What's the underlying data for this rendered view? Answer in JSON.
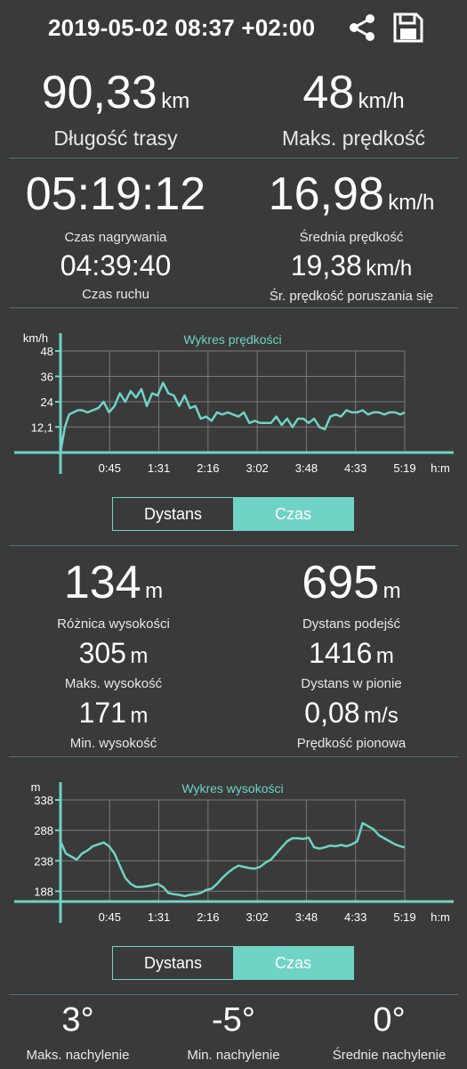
{
  "header": {
    "title": "2019-05-02 08:37 +02:00"
  },
  "summary": {
    "distance": {
      "value": "90,33",
      "unit": "km",
      "label": "Długość trasy"
    },
    "max_speed": {
      "value": "48",
      "unit": "km/h",
      "label": "Maks. prędkość"
    },
    "rec_time": {
      "value": "05:19:12",
      "label": "Czas nagrywania"
    },
    "avg_speed": {
      "value": "16,98",
      "unit": "km/h",
      "label": "Średnia prędkość"
    },
    "move_time": {
      "value": "04:39:40",
      "label": "Czas ruchu"
    },
    "avg_move_speed": {
      "value": "19,38",
      "unit": "km/h",
      "label": "Śr. prędkość poruszania się"
    }
  },
  "elevation": {
    "diff": {
      "value": "134",
      "unit": "m",
      "label": "Różnica wysokości"
    },
    "ascent": {
      "value": "695",
      "unit": "m",
      "label": "Dystans podejść"
    },
    "max": {
      "value": "305",
      "unit": "m",
      "label": "Maks. wysokość"
    },
    "vertical": {
      "value": "1416",
      "unit": "m",
      "label": "Dystans w pionie"
    },
    "min": {
      "value": "171",
      "unit": "m",
      "label": "Min. wysokość"
    },
    "vspeed": {
      "value": "0,08",
      "unit": "m/s",
      "label": "Prędkość pionowa"
    }
  },
  "slope": {
    "max": {
      "value": "3°",
      "label": "Maks. nachylenie"
    },
    "min": {
      "value": "-5°",
      "label": "Min. nachylenie"
    },
    "avg": {
      "value": "0°",
      "label": "Średnie nachylenie"
    }
  },
  "toggle": {
    "distance": "Dystans",
    "time": "Czas",
    "selected": "Czas"
  },
  "colors": {
    "accent": "#6fd3c6",
    "background": "#3a3a3a",
    "grid": "#7a7a7a"
  },
  "icons": {
    "share": "share-icon",
    "save": "save-icon"
  },
  "chart_data": [
    {
      "type": "line",
      "title": "Wykres prędkości",
      "ylabel": "km/h",
      "xlabel": "h:m",
      "x_ticks": [
        "0:45",
        "1:31",
        "2:16",
        "3:02",
        "3:48",
        "4:33",
        "5:19"
      ],
      "y_ticks": [
        "12,1",
        "24",
        "36",
        "48"
      ],
      "ylim": [
        0,
        48
      ],
      "xlim": [
        0,
        319
      ],
      "series": [
        {
          "x": [
            0,
            4,
            8,
            12,
            16,
            20,
            25,
            30,
            35,
            40,
            45,
            50,
            55,
            60,
            65,
            70,
            75,
            80,
            85,
            90,
            95,
            100,
            105,
            110,
            115,
            120,
            125,
            130,
            135,
            140,
            145,
            150,
            155,
            160,
            165,
            170,
            175,
            180,
            185,
            190,
            195,
            200,
            205,
            210,
            215,
            220,
            225,
            230,
            235,
            240,
            245,
            250,
            255,
            260,
            265,
            270,
            275,
            280,
            285,
            290,
            295,
            300,
            305,
            310,
            315,
            319
          ],
          "y": [
            0,
            12,
            18,
            19,
            20,
            20,
            19,
            20,
            21,
            24,
            19,
            22,
            28,
            24,
            29,
            26,
            30,
            22,
            28,
            27,
            33,
            28,
            27,
            22,
            27,
            21,
            22,
            16,
            17,
            15,
            19,
            18,
            19,
            18,
            17,
            19,
            14,
            15,
            14,
            14,
            14,
            17,
            13,
            16,
            12,
            16,
            16,
            14,
            16,
            12,
            11,
            17,
            18,
            17,
            20,
            19,
            19,
            20,
            18,
            19,
            19,
            18,
            19,
            19,
            18,
            19
          ]
        }
      ]
    },
    {
      "type": "line",
      "title": "Wykres wysokości",
      "ylabel": "m",
      "xlabel": "h:m",
      "x_ticks": [
        "0:45",
        "1:31",
        "2:16",
        "3:02",
        "3:48",
        "4:33",
        "5:19"
      ],
      "y_ticks": [
        "188",
        "238",
        "288",
        "338"
      ],
      "ylim": [
        171,
        338
      ],
      "xlim": [
        0,
        319
      ],
      "series": [
        {
          "x": [
            0,
            5,
            10,
            15,
            20,
            25,
            30,
            35,
            40,
            45,
            50,
            55,
            60,
            65,
            70,
            75,
            80,
            85,
            90,
            95,
            100,
            105,
            110,
            115,
            120,
            125,
            130,
            135,
            140,
            145,
            150,
            155,
            160,
            165,
            170,
            175,
            180,
            185,
            190,
            195,
            200,
            205,
            210,
            215,
            220,
            225,
            230,
            235,
            240,
            245,
            250,
            255,
            260,
            265,
            270,
            275,
            280,
            285,
            290,
            295,
            300,
            305,
            310,
            315,
            319
          ],
          "y": [
            270,
            250,
            245,
            240,
            250,
            255,
            262,
            265,
            268,
            262,
            250,
            230,
            210,
            200,
            195,
            195,
            196,
            198,
            200,
            195,
            185,
            183,
            182,
            180,
            182,
            183,
            185,
            190,
            192,
            200,
            210,
            218,
            225,
            230,
            228,
            226,
            225,
            228,
            235,
            240,
            250,
            260,
            270,
            275,
            275,
            274,
            276,
            260,
            258,
            260,
            263,
            262,
            264,
            262,
            265,
            270,
            300,
            295,
            290,
            280,
            275,
            270,
            265,
            262,
            260
          ]
        }
      ]
    }
  ]
}
